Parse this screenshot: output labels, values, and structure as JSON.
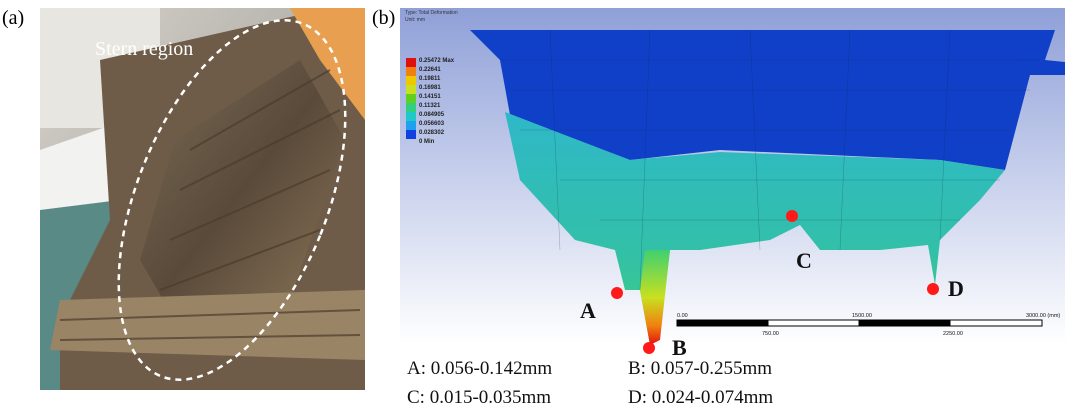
{
  "panel_a": {
    "label": "(a)",
    "annotation": "Stern region"
  },
  "panel_b": {
    "label": "(b)",
    "header": [
      "Type: Total Deformation",
      "Unit: mm"
    ],
    "legend": [
      "0.25472 Max",
      "0.22641",
      "0.19811",
      "0.16981",
      "0.14151",
      "0.11321",
      "0.084905",
      "0.056603",
      "0.028302",
      "0 Min"
    ],
    "points": [
      "A",
      "B",
      "C",
      "D"
    ],
    "scale_bar": {
      "top": [
        "0.00",
        "1500.00",
        "3000.00 (mm)"
      ],
      "bottom": [
        "750.00",
        "2250.00"
      ]
    },
    "results": [
      "A: 0.056-0.142mm",
      "B: 0.057-0.255mm",
      "C: 0.015-0.035mm",
      "D: 0.024-0.074mm"
    ]
  }
}
